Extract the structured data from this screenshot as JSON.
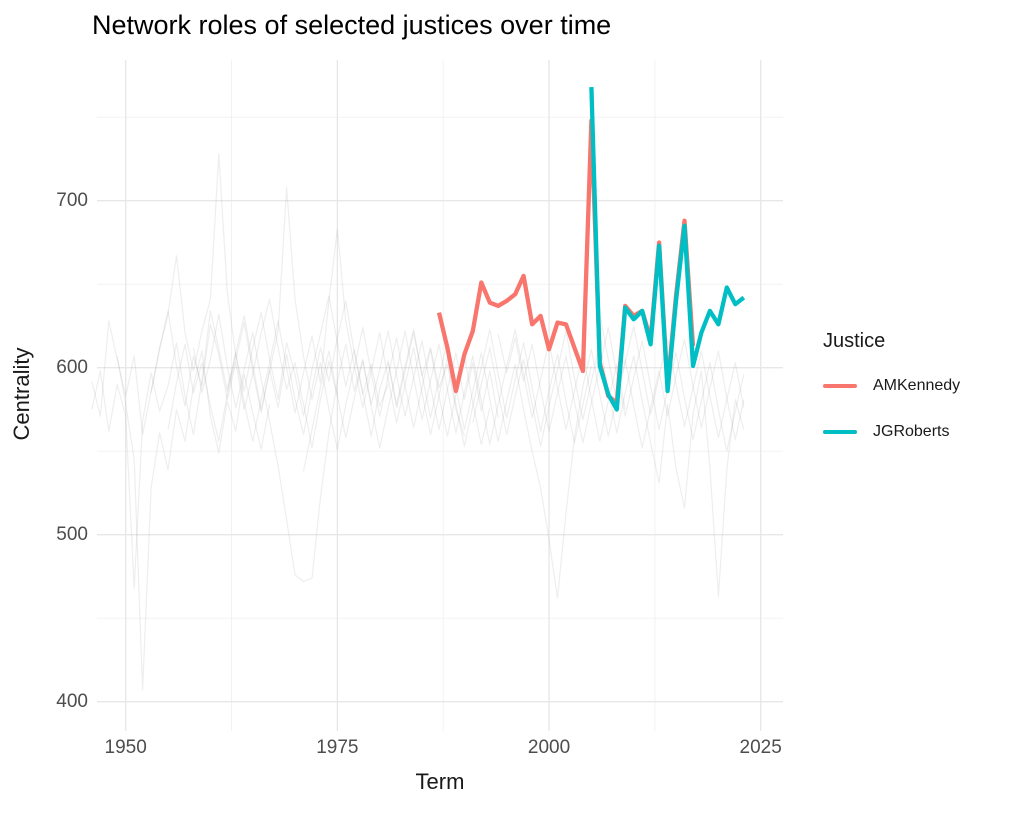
{
  "title": "Network roles of selected justices over time",
  "legend": {
    "title": "Justice",
    "items": [
      {
        "label": "AMKennedy",
        "color": "#F8766D"
      },
      {
        "label": "JGRoberts",
        "color": "#00BFC4"
      }
    ]
  },
  "colors": {
    "highlight_red": "#F8766D",
    "highlight_teal": "#00BFC4",
    "grid_major": "#E7E7E7",
    "grid_minor": "#F1F1F1",
    "background_line": "#9a9a9a",
    "tick_text": "#4d4d4d",
    "axis_title_text": "#1a1a1a"
  },
  "chart_data": {
    "type": "line",
    "title": "Network roles of selected justices over time",
    "xlabel": "Term",
    "ylabel": "Centrality",
    "x_ticks": [
      1950,
      1975,
      2000,
      2025
    ],
    "y_ticks": [
      400,
      500,
      600,
      700
    ],
    "x_minor": [
      1962.5,
      1987.5,
      2012.5
    ],
    "y_minor": [
      450,
      550,
      650,
      750
    ],
    "xlim": [
      1946.6,
      2027.6
    ],
    "ylim": [
      382,
      785
    ],
    "grid": "major+minor",
    "legend_position": "right",
    "series": [
      {
        "name": "AMKennedy",
        "color": "#F8766D",
        "start_year": 1987,
        "values": [
          633,
          612,
          586,
          608,
          622,
          651,
          639,
          637,
          640,
          644,
          655,
          626,
          631,
          611,
          627,
          626,
          612,
          598,
          748,
          603,
          583,
          579,
          637,
          631,
          634,
          617,
          675,
          589,
          643,
          688,
          613
        ]
      },
      {
        "name": "JGRoberts",
        "color": "#00BFC4",
        "start_year": 2005,
        "values": [
          768,
          601,
          584,
          575,
          636,
          629,
          634,
          614,
          673,
          586,
          640,
          685,
          601,
          621,
          634,
          626,
          648,
          638,
          642
        ]
      }
    ],
    "background_series": [
      {
        "start_year": 1946,
        "values": [
          592,
          571,
          628,
          605,
          583,
          607,
          560,
          586,
          612,
          634,
          601,
          577,
          607,
          589,
          626,
          608,
          581,
          603,
          575,
          596,
          621,
          641,
          612,
          587,
          603,
          578,
          552,
          581,
          604,
          583
        ]
      },
      {
        "start_year": 1946,
        "values": [
          575,
          598,
          562,
          590,
          571,
          468,
          568,
          597,
          574,
          589,
          615,
          583,
          560,
          592,
          634,
          611,
          586,
          605,
          627,
          598,
          573,
          599,
          576,
          608,
          581,
          560,
          587,
          612,
          592,
          618,
          640,
          609,
          584,
          602,
          577,
          590
        ]
      },
      {
        "start_year": 1949,
        "values": [
          607,
          578,
          545,
          407,
          528,
          561,
          539,
          575,
          556,
          589,
          610,
          571,
          549,
          580,
          562,
          596,
          573,
          551,
          578
        ]
      },
      {
        "start_year": 1953,
        "values": [
          585,
          611,
          632,
          667,
          621,
          598,
          622,
          641,
          728,
          645,
          607,
          586,
          612,
          633,
          605,
          581,
          615,
          596,
          571,
          599,
          620,
          643,
          615,
          589,
          611,
          585,
          559,
          587,
          604,
          576,
          598,
          621,
          595,
          612,
          588,
          602,
          575,
          559
        ]
      },
      {
        "start_year": 1955,
        "values": [
          563,
          591,
          614,
          585,
          603,
          577,
          556,
          584,
          609,
          631,
          602,
          575,
          598,
          622,
          708,
          641,
          607,
          581,
          603,
          575,
          551,
          578,
          600,
          624,
          597,
          571,
          595,
          618,
          589,
          564,
          588,
          611,
          583,
          559,
          584,
          607,
          579,
          554,
          576
        ]
      },
      {
        "start_year": 1958,
        "values": [
          612,
          585,
          605,
          632,
          601,
          576,
          599,
          621,
          593,
          568,
          541,
          509,
          476,
          472,
          474,
          522,
          561,
          592,
          614,
          586,
          605,
          578,
          599,
          622,
          595,
          571,
          594,
          616,
          589,
          563,
          587,
          609,
          581,
          603,
          574,
          598,
          570
        ]
      },
      {
        "start_year": 1962,
        "values": [
          588,
          609,
          579,
          556,
          581,
          603,
          628,
          600,
          573,
          597,
          619,
          591,
          640,
          683,
          628,
          601,
          576,
          598,
          621,
          593,
          567,
          590,
          612,
          585,
          560,
          583,
          606,
          578,
          553,
          577,
          600,
          623,
          596,
          570,
          593,
          615,
          588,
          562,
          586,
          608,
          580,
          555,
          578,
          601
        ]
      },
      {
        "start_year": 1971,
        "values": [
          538,
          563,
          588,
          610,
          583,
          558,
          582,
          604,
          577,
          552,
          576,
          598,
          622,
          594,
          569,
          592,
          614,
          587,
          561,
          585,
          607,
          580,
          554,
          578,
          601,
          623,
          596,
          570,
          593,
          616,
          588,
          563,
          586,
          609,
          581,
          556,
          580,
          602,
          575
        ]
      },
      {
        "start_year": 1981,
        "values": [
          603,
          578,
          601,
          623,
          596,
          570,
          594,
          616,
          588,
          563,
          586,
          609,
          581,
          556,
          580,
          602,
          575,
          550,
          528,
          497,
          462,
          513,
          558,
          589,
          611,
          584,
          559,
          582,
          605,
          577,
          552,
          576,
          598,
          571,
          595,
          617,
          589,
          564,
          588,
          610,
          582,
          557,
          581
        ]
      },
      {
        "start_year": 1991,
        "values": [
          567,
          590,
          612,
          585,
          560,
          583,
          605,
          578,
          553,
          577,
          599,
          622,
          594,
          569,
          592,
          614,
          587,
          561,
          585,
          607,
          580,
          555,
          531,
          578,
          540,
          516,
          572,
          598,
          540,
          463,
          539,
          581,
          563
        ]
      },
      {
        "start_year": 1994,
        "values": [
          620,
          597,
          618,
          592,
          614,
          587,
          562,
          585,
          607,
          580,
          555,
          579,
          601,
          624,
          596,
          571,
          594,
          616,
          589,
          563,
          587,
          609,
          582,
          557,
          580,
          603,
          575,
          550,
          574,
          596
        ]
      },
      {
        "start_year": 2006,
        "values": [
          632,
          605,
          580,
          603,
          625,
          598,
          572,
          595,
          617,
          590,
          565,
          588,
          610,
          583,
          558,
          581,
          603,
          576
        ]
      }
    ]
  }
}
